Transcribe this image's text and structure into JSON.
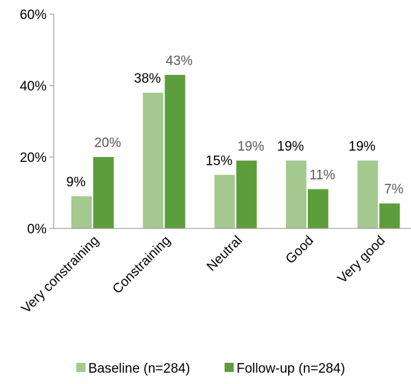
{
  "chart_data": {
    "type": "bar",
    "title": "",
    "xlabel": "",
    "ylabel": "",
    "categories": [
      "Very constraining",
      "Constraining",
      "Neutral",
      "Good",
      "Very good"
    ],
    "series": [
      {
        "name": "Baseline (n=284)",
        "color": "#a3c98f",
        "label_color": "#000000",
        "values": [
          9,
          38,
          15,
          19,
          19
        ],
        "labels": [
          "9%",
          "38%",
          "15%",
          "19%",
          "19%"
        ]
      },
      {
        "name": "Follow-up (n=284)",
        "color": "#5d9e3c",
        "label_color": "#595959",
        "values": [
          20,
          43,
          19,
          11,
          7
        ],
        "labels": [
          "20%",
          "43%",
          "19%",
          "11%",
          "7%"
        ]
      }
    ],
    "ylim": [
      0,
      60
    ],
    "yticks": [
      0,
      20,
      40,
      60
    ],
    "ytick_labels": [
      "0%",
      "20%",
      "40%",
      "60%"
    ],
    "grid": false,
    "legend_position": "bottom"
  }
}
